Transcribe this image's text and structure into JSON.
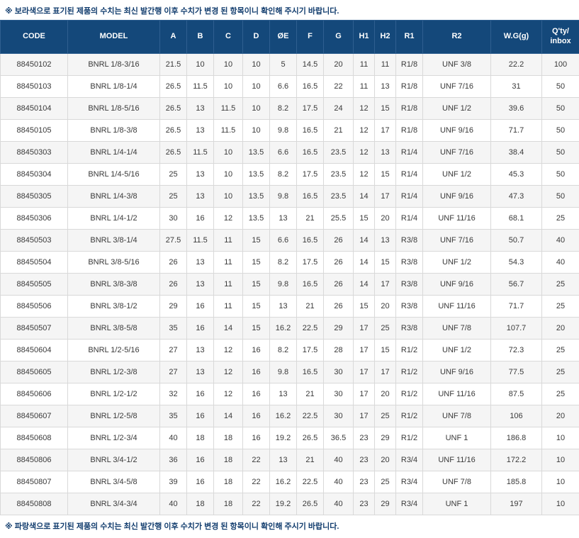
{
  "notes": {
    "top": "※ 보라색으로 표기된 제품의 수치는 최신 발간행 이후 수치가 변경 된 항목이니 확인해 주시기 바랍니다.",
    "bottom": "※ 파랑색으로 표기된 제품의 수치는 최신 발간행 이후 수치가 변경 된 항목이니 확인해 주시기 바랍니다."
  },
  "colors": {
    "header_bg": "#14487a",
    "header_text": "#ffffff",
    "note_text": "#123d6e",
    "row_alt": "#f5f5f5",
    "border": "#d9d9d9"
  },
  "table": {
    "columns": [
      "CODE",
      "MODEL",
      "A",
      "B",
      "C",
      "D",
      "ØE",
      "F",
      "G",
      "H1",
      "H2",
      "R1",
      "R2",
      "W.G(g)",
      "Q'ty/\ninbox"
    ],
    "rows": [
      [
        "88450102",
        "BNRL 1/8-3/16",
        "21.5",
        "10",
        "10",
        "10",
        "5",
        "14.5",
        "20",
        "11",
        "11",
        "R1/8",
        "UNF 3/8",
        "22.2",
        "100"
      ],
      [
        "88450103",
        "BNRL 1/8-1/4",
        "26.5",
        "11.5",
        "10",
        "10",
        "6.6",
        "16.5",
        "22",
        "11",
        "13",
        "R1/8",
        "UNF 7/16",
        "31",
        "50"
      ],
      [
        "88450104",
        "BNRL 1/8-5/16",
        "26.5",
        "13",
        "11.5",
        "10",
        "8.2",
        "17.5",
        "24",
        "12",
        "15",
        "R1/8",
        "UNF 1/2",
        "39.6",
        "50"
      ],
      [
        "88450105",
        "BNRL 1/8-3/8",
        "26.5",
        "13",
        "11.5",
        "10",
        "9.8",
        "16.5",
        "21",
        "12",
        "17",
        "R1/8",
        "UNF 9/16",
        "71.7",
        "50"
      ],
      [
        "88450303",
        "BNRL 1/4-1/4",
        "26.5",
        "11.5",
        "10",
        "13.5",
        "6.6",
        "16.5",
        "23.5",
        "12",
        "13",
        "R1/4",
        "UNF 7/16",
        "38.4",
        "50"
      ],
      [
        "88450304",
        "BNRL 1/4-5/16",
        "25",
        "13",
        "10",
        "13.5",
        "8.2",
        "17.5",
        "23.5",
        "12",
        "15",
        "R1/4",
        "UNF 1/2",
        "45.3",
        "50"
      ],
      [
        "88450305",
        "BNRL 1/4-3/8",
        "25",
        "13",
        "10",
        "13.5",
        "9.8",
        "16.5",
        "23.5",
        "14",
        "17",
        "R1/4",
        "UNF 9/16",
        "47.3",
        "50"
      ],
      [
        "88450306",
        "BNRL 1/4-1/2",
        "30",
        "16",
        "12",
        "13.5",
        "13",
        "21",
        "25.5",
        "15",
        "20",
        "R1/4",
        "UNF 11/16",
        "68.1",
        "25"
      ],
      [
        "88450503",
        "BNRL 3/8-1/4",
        "27.5",
        "11.5",
        "11",
        "15",
        "6.6",
        "16.5",
        "26",
        "14",
        "13",
        "R3/8",
        "UNF 7/16",
        "50.7",
        "40"
      ],
      [
        "88450504",
        "BNRL 3/8-5/16",
        "26",
        "13",
        "11",
        "15",
        "8.2",
        "17.5",
        "26",
        "14",
        "15",
        "R3/8",
        "UNF 1/2",
        "54.3",
        "40"
      ],
      [
        "88450505",
        "BNRL 3/8-3/8",
        "26",
        "13",
        "11",
        "15",
        "9.8",
        "16.5",
        "26",
        "14",
        "17",
        "R3/8",
        "UNF 9/16",
        "56.7",
        "25"
      ],
      [
        "88450506",
        "BNRL 3/8-1/2",
        "29",
        "16",
        "11",
        "15",
        "13",
        "21",
        "26",
        "15",
        "20",
        "R3/8",
        "UNF 11/16",
        "71.7",
        "25"
      ],
      [
        "88450507",
        "BNRL 3/8-5/8",
        "35",
        "16",
        "14",
        "15",
        "16.2",
        "22.5",
        "29",
        "17",
        "25",
        "R3/8",
        "UNF 7/8",
        "107.7",
        "20"
      ],
      [
        "88450604",
        "BNRL 1/2-5/16",
        "27",
        "13",
        "12",
        "16",
        "8.2",
        "17.5",
        "28",
        "17",
        "15",
        "R1/2",
        "UNF 1/2",
        "72.3",
        "25"
      ],
      [
        "88450605",
        "BNRL 1/2-3/8",
        "27",
        "13",
        "12",
        "16",
        "9.8",
        "16.5",
        "30",
        "17",
        "17",
        "R1/2",
        "UNF 9/16",
        "77.5",
        "25"
      ],
      [
        "88450606",
        "BNRL 1/2-1/2",
        "32",
        "16",
        "12",
        "16",
        "13",
        "21",
        "30",
        "17",
        "20",
        "R1/2",
        "UNF 11/16",
        "87.5",
        "25"
      ],
      [
        "88450607",
        "BNRL 1/2-5/8",
        "35",
        "16",
        "14",
        "16",
        "16.2",
        "22.5",
        "30",
        "17",
        "25",
        "R1/2",
        "UNF 7/8",
        "106",
        "20"
      ],
      [
        "88450608",
        "BNRL 1/2-3/4",
        "40",
        "18",
        "18",
        "16",
        "19.2",
        "26.5",
        "36.5",
        "23",
        "29",
        "R1/2",
        "UNF 1",
        "186.8",
        "10"
      ],
      [
        "88450806",
        "BNRL 3/4-1/2",
        "36",
        "16",
        "18",
        "22",
        "13",
        "21",
        "40",
        "23",
        "20",
        "R3/4",
        "UNF 11/16",
        "172.2",
        "10"
      ],
      [
        "88450807",
        "BNRL 3/4-5/8",
        "39",
        "16",
        "18",
        "22",
        "16.2",
        "22.5",
        "40",
        "23",
        "25",
        "R3/4",
        "UNF 7/8",
        "185.8",
        "10"
      ],
      [
        "88450808",
        "BNRL 3/4-3/4",
        "40",
        "18",
        "18",
        "22",
        "19.2",
        "26.5",
        "40",
        "23",
        "29",
        "R3/4",
        "UNF 1",
        "197",
        "10"
      ]
    ]
  }
}
